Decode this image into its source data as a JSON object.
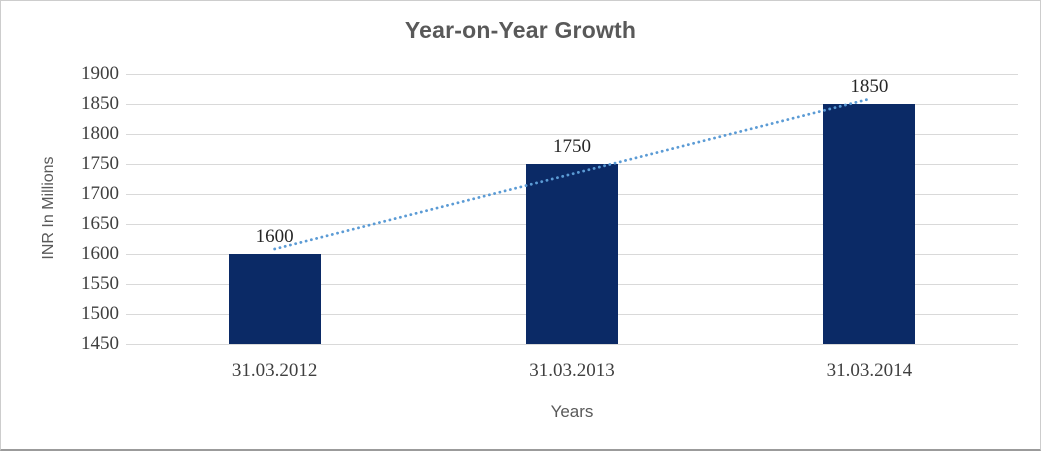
{
  "chart_data": {
    "type": "bar",
    "title": "Year-on-Year Growth",
    "categories": [
      "31.03.2012",
      "31.03.2013",
      "31.03.2014"
    ],
    "values": [
      1600,
      1750,
      1850
    ],
    "data_labels": [
      "1600",
      "1750",
      "1850"
    ],
    "xlabel": "Years",
    "ylabel": "INR In Millions",
    "ylim": [
      1450,
      1900
    ],
    "yticks": [
      1900,
      1850,
      1800,
      1750,
      1700,
      1650,
      1600,
      1550,
      1500,
      1450
    ],
    "grid": true,
    "legend": "none",
    "trendline": {
      "type": "linear",
      "style": "round-dot"
    },
    "colors": {
      "bar": "#0b2a66",
      "trendline": "#5b9bd5",
      "gridline": "#d9d9d9",
      "title_text": "#595959",
      "axis_title_text": "#595959",
      "tick_text": "#3f3f3f",
      "data_label_text": "#262626"
    }
  }
}
